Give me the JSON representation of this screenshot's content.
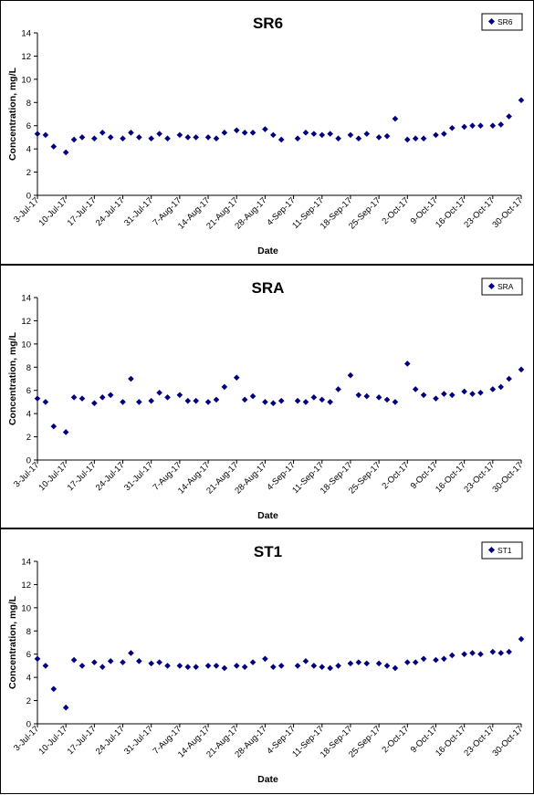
{
  "chart_data": [
    {
      "type": "scatter",
      "title": "SR6",
      "xlabel": "Date",
      "ylabel": "Concentration, mg/L",
      "ylim": [
        0,
        14
      ],
      "yticks": [
        0,
        2,
        4,
        6,
        8,
        10,
        12,
        14
      ],
      "xlim": [
        "2017-07-03",
        "2017-10-30"
      ],
      "xticks": [
        "3-Jul-17",
        "10-Jul-17",
        "17-Jul-17",
        "24-Jul-17",
        "31-Jul-17",
        "7-Aug-17",
        "14-Aug-17",
        "21-Aug-17",
        "28-Aug-17",
        "4-Sep-17",
        "11-Sep-17",
        "18-Sep-17",
        "25-Sep-17",
        "2-Oct-17",
        "9-Oct-17",
        "16-Oct-17",
        "23-Oct-17",
        "30-Oct-17"
      ],
      "legend": "top-right",
      "grid": false,
      "marker_color": "#000080",
      "series": [
        {
          "name": "SR6",
          "x": [
            "2017-07-03",
            "2017-07-05",
            "2017-07-07",
            "2017-07-10",
            "2017-07-12",
            "2017-07-14",
            "2017-07-17",
            "2017-07-19",
            "2017-07-21",
            "2017-07-24",
            "2017-07-26",
            "2017-07-28",
            "2017-07-31",
            "2017-08-02",
            "2017-08-04",
            "2017-08-07",
            "2017-08-09",
            "2017-08-11",
            "2017-08-14",
            "2017-08-16",
            "2017-08-18",
            "2017-08-21",
            "2017-08-23",
            "2017-08-25",
            "2017-08-28",
            "2017-08-30",
            "2017-09-01",
            "2017-09-05",
            "2017-09-07",
            "2017-09-09",
            "2017-09-11",
            "2017-09-13",
            "2017-09-15",
            "2017-09-18",
            "2017-09-20",
            "2017-09-22",
            "2017-09-25",
            "2017-09-27",
            "2017-09-29",
            "2017-10-02",
            "2017-10-04",
            "2017-10-06",
            "2017-10-09",
            "2017-10-11",
            "2017-10-13",
            "2017-10-16",
            "2017-10-18",
            "2017-10-20",
            "2017-10-23",
            "2017-10-25",
            "2017-10-27",
            "2017-10-30"
          ],
          "y": [
            5.3,
            5.2,
            4.2,
            3.7,
            4.8,
            5.0,
            4.9,
            5.4,
            5.0,
            4.9,
            5.4,
            5.0,
            4.9,
            5.3,
            4.9,
            5.2,
            5.0,
            5.0,
            5.0,
            4.9,
            5.4,
            5.6,
            5.4,
            5.4,
            5.7,
            5.2,
            4.8,
            4.9,
            5.4,
            5.3,
            5.2,
            5.3,
            4.9,
            5.2,
            4.9,
            5.3,
            5.0,
            5.1,
            6.6,
            4.8,
            4.9,
            4.9,
            5.2,
            5.3,
            5.8,
            5.9,
            6.0,
            6.0,
            6.0,
            6.1,
            6.8,
            8.2
          ]
        }
      ]
    },
    {
      "type": "scatter",
      "title": "SRA",
      "xlabel": "Date",
      "ylabel": "Concentration, mg/L",
      "ylim": [
        0,
        14
      ],
      "yticks": [
        0,
        2,
        4,
        6,
        8,
        10,
        12,
        14
      ],
      "xlim": [
        "2017-07-03",
        "2017-10-30"
      ],
      "xticks": [
        "3-Jul-17",
        "10-Jul-17",
        "17-Jul-17",
        "24-Jul-17",
        "31-Jul-17",
        "7-Aug-17",
        "14-Aug-17",
        "21-Aug-17",
        "28-Aug-17",
        "4-Sep-17",
        "11-Sep-17",
        "18-Sep-17",
        "25-Sep-17",
        "2-Oct-17",
        "9-Oct-17",
        "16-Oct-17",
        "23-Oct-17",
        "30-Oct-17"
      ],
      "legend": "top-right",
      "grid": false,
      "marker_color": "#000080",
      "series": [
        {
          "name": "SRA",
          "x": [
            "2017-07-03",
            "2017-07-05",
            "2017-07-07",
            "2017-07-10",
            "2017-07-12",
            "2017-07-14",
            "2017-07-17",
            "2017-07-19",
            "2017-07-21",
            "2017-07-24",
            "2017-07-26",
            "2017-07-28",
            "2017-07-31",
            "2017-08-02",
            "2017-08-04",
            "2017-08-07",
            "2017-08-09",
            "2017-08-11",
            "2017-08-14",
            "2017-08-16",
            "2017-08-18",
            "2017-08-21",
            "2017-08-23",
            "2017-08-25",
            "2017-08-28",
            "2017-08-30",
            "2017-09-01",
            "2017-09-05",
            "2017-09-07",
            "2017-09-09",
            "2017-09-11",
            "2017-09-13",
            "2017-09-15",
            "2017-09-18",
            "2017-09-20",
            "2017-09-22",
            "2017-09-25",
            "2017-09-27",
            "2017-09-29",
            "2017-10-02",
            "2017-10-04",
            "2017-10-06",
            "2017-10-09",
            "2017-10-11",
            "2017-10-13",
            "2017-10-16",
            "2017-10-18",
            "2017-10-20",
            "2017-10-23",
            "2017-10-25",
            "2017-10-27",
            "2017-10-30"
          ],
          "y": [
            5.3,
            5.0,
            2.9,
            2.4,
            5.4,
            5.3,
            4.9,
            5.4,
            5.6,
            5.0,
            7.0,
            5.0,
            5.1,
            5.8,
            5.4,
            5.6,
            5.1,
            5.1,
            5.0,
            5.2,
            6.3,
            7.1,
            5.2,
            5.5,
            5.0,
            4.9,
            5.1,
            5.1,
            5.0,
            5.4,
            5.2,
            5.0,
            6.1,
            7.3,
            5.6,
            5.5,
            5.4,
            5.2,
            5.0,
            8.3,
            6.1,
            5.6,
            5.3,
            5.7,
            5.6,
            5.9,
            5.7,
            5.8,
            6.1,
            6.3,
            7.0,
            7.8
          ]
        }
      ]
    },
    {
      "type": "scatter",
      "title": "ST1",
      "xlabel": "Date",
      "ylabel": "Concentration, mg/L",
      "ylim": [
        0,
        14
      ],
      "yticks": [
        0,
        2,
        4,
        6,
        8,
        10,
        12,
        14
      ],
      "xlim": [
        "2017-07-03",
        "2017-10-30"
      ],
      "xticks": [
        "3-Jul-17",
        "10-Jul-17",
        "17-Jul-17",
        "24-Jul-17",
        "31-Jul-17",
        "7-Aug-17",
        "14-Aug-17",
        "21-Aug-17",
        "28-Aug-17",
        "4-Sep-17",
        "11-Sep-17",
        "18-Sep-17",
        "25-Sep-17",
        "2-Oct-17",
        "9-Oct-17",
        "16-Oct-17",
        "23-Oct-17",
        "30-Oct-17"
      ],
      "legend": "top-right",
      "grid": false,
      "marker_color": "#000080",
      "series": [
        {
          "name": "ST1",
          "x": [
            "2017-07-03",
            "2017-07-05",
            "2017-07-07",
            "2017-07-10",
            "2017-07-12",
            "2017-07-14",
            "2017-07-17",
            "2017-07-19",
            "2017-07-21",
            "2017-07-24",
            "2017-07-26",
            "2017-07-28",
            "2017-07-31",
            "2017-08-02",
            "2017-08-04",
            "2017-08-07",
            "2017-08-09",
            "2017-08-11",
            "2017-08-14",
            "2017-08-16",
            "2017-08-18",
            "2017-08-21",
            "2017-08-23",
            "2017-08-25",
            "2017-08-28",
            "2017-08-30",
            "2017-09-01",
            "2017-09-05",
            "2017-09-07",
            "2017-09-09",
            "2017-09-11",
            "2017-09-13",
            "2017-09-15",
            "2017-09-18",
            "2017-09-20",
            "2017-09-22",
            "2017-09-25",
            "2017-09-27",
            "2017-09-29",
            "2017-10-02",
            "2017-10-04",
            "2017-10-06",
            "2017-10-09",
            "2017-10-11",
            "2017-10-13",
            "2017-10-16",
            "2017-10-18",
            "2017-10-20",
            "2017-10-23",
            "2017-10-25",
            "2017-10-27",
            "2017-10-30"
          ],
          "y": [
            5.6,
            5.0,
            3.0,
            1.4,
            5.5,
            5.0,
            5.3,
            4.9,
            5.4,
            5.3,
            6.1,
            5.4,
            5.2,
            5.3,
            5.0,
            5.0,
            4.9,
            4.9,
            5.0,
            5.0,
            4.8,
            5.0,
            4.9,
            5.3,
            5.6,
            4.9,
            5.0,
            5.0,
            5.4,
            5.0,
            4.9,
            4.8,
            5.0,
            5.2,
            5.3,
            5.2,
            5.2,
            5.0,
            4.8,
            5.3,
            5.3,
            5.6,
            5.5,
            5.6,
            5.9,
            6.0,
            6.1,
            6.0,
            6.2,
            6.1,
            6.2,
            7.3
          ]
        }
      ]
    }
  ]
}
